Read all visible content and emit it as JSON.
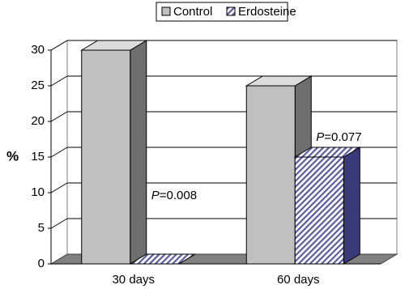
{
  "chart_data": {
    "type": "bar3d",
    "y_label": "%",
    "categories": [
      "30 days",
      "60 days"
    ],
    "series": [
      {
        "name": "Control",
        "color": "#c0c0c0",
        "values": [
          30,
          25
        ]
      },
      {
        "name": "Erdosteine",
        "color": "#5a5aa0",
        "values": [
          0,
          15
        ]
      }
    ],
    "ylim": [
      0,
      30
    ],
    "yticks": [
      0,
      5,
      10,
      15,
      20,
      25,
      30
    ],
    "grid": true,
    "legend": "top",
    "annotations": [
      {
        "symbol": "P",
        "text": "=0.008"
      },
      {
        "symbol": "P",
        "text": "=0.077"
      }
    ]
  }
}
